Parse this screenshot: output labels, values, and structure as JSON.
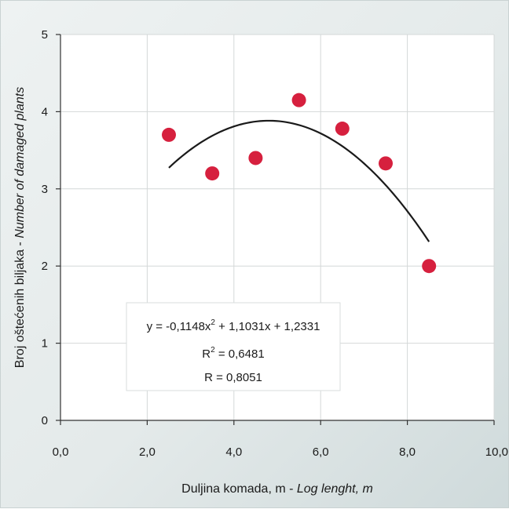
{
  "chart_data": {
    "type": "scatter",
    "title": "",
    "xlabel": "Duljina komada, m - ",
    "xlabel_italic": "Log lenght, m",
    "ylabel": "Broj oštećenih biljaka - ",
    "ylabel_italic": "Number of damaged plants",
    "xlim": [
      0,
      10
    ],
    "ylim": [
      0,
      5
    ],
    "x_ticks": [
      "0,0",
      "2,0",
      "4,0",
      "6,0",
      "8,0",
      "10,0"
    ],
    "y_ticks": [
      "0",
      "1",
      "2",
      "3",
      "4",
      "5"
    ],
    "grid": true,
    "series": [
      {
        "x": [
          2.5,
          3.5,
          4.5,
          5.5,
          6.5,
          7.5,
          8.5
        ],
        "y": [
          3.7,
          3.2,
          3.4,
          4.15,
          3.78,
          3.33,
          2.0
        ],
        "color": "#d6203e"
      }
    ],
    "trendline": {
      "type": "polynomial",
      "coefficients": [
        -0.1148,
        1.1031,
        1.2331
      ],
      "x_range": [
        2.5,
        8.5
      ],
      "color": "#1a1a1a"
    },
    "annotation": {
      "equation_prefix": "y = -0,1148x",
      "equation_sup": "2",
      "equation_suffix": " + 1,1031x + 1,2331",
      "r2_prefix": "R",
      "r2_sup": "2",
      "r2_suffix": " = 0,6481",
      "r_line": "R = 0,8051"
    }
  }
}
